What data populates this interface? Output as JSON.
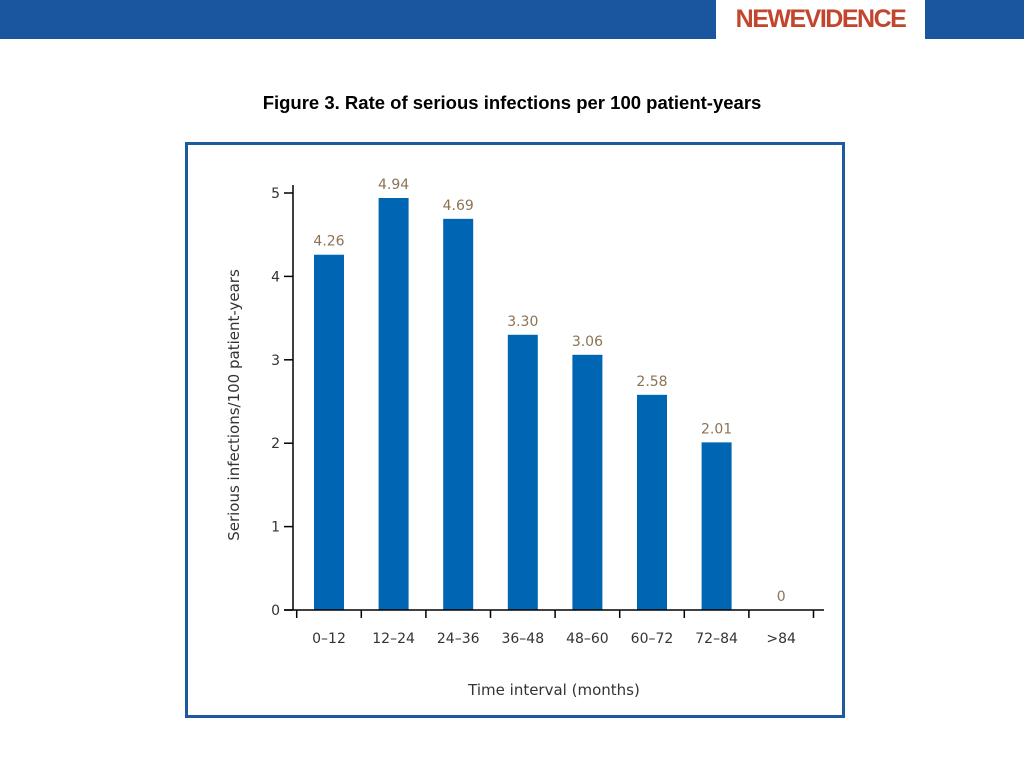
{
  "header": {
    "logo_text": "NEWEVIDENCE",
    "bar_color": "#1a56a0",
    "logo_color": "#c2462e"
  },
  "slide": {
    "title": "Figure 3. Rate of serious infections per 100 patient-years"
  },
  "chart_data": {
    "type": "bar",
    "categories": [
      "0–12",
      "12–24",
      "24–36",
      "36–48",
      "48–60",
      "60–72",
      "72–84",
      ">84"
    ],
    "values": [
      4.26,
      4.94,
      4.69,
      3.3,
      3.06,
      2.58,
      2.01,
      0
    ],
    "value_labels": [
      "4.26",
      "4.94",
      "4.69",
      "3.30",
      "3.06",
      "2.58",
      "2.01",
      "0"
    ],
    "xlabel": "Time interval (months)",
    "ylabel": "Serious infections/100 patient-years",
    "ylim": [
      0,
      5
    ],
    "yticks": [
      0,
      1,
      2,
      3,
      4,
      5
    ],
    "grid": false,
    "bar_color": "#0066b3",
    "value_label_color": "#8b7355",
    "frame_color": "#1f5aa0"
  }
}
